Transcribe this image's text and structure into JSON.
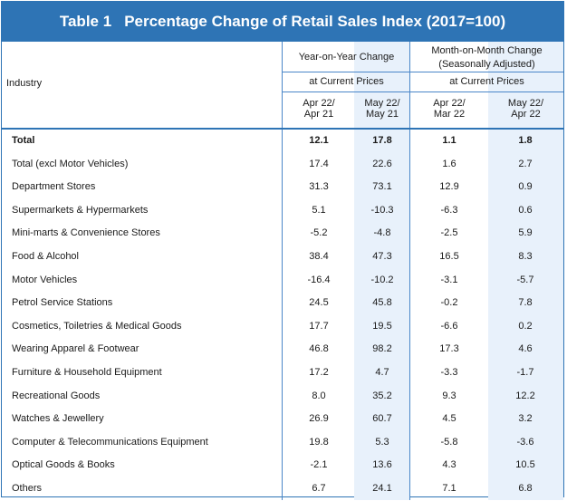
{
  "title": {
    "number": "Table 1",
    "text": "Percentage Change of Retail Sales Index (2017=100)"
  },
  "header": {
    "industry": "Industry",
    "yoy_group": "Year-on-Year Change",
    "mom_group_line1": "Month-on-Month Change",
    "mom_group_line2": "(Seasonally Adjusted)",
    "yoy_sub": "at Current Prices",
    "mom_sub": "at Current Prices",
    "cols": [
      {
        "line1": "Apr 22/",
        "line2": "Apr 21"
      },
      {
        "line1": "May 22/",
        "line2": "May 21"
      },
      {
        "line1": "Apr 22/",
        "line2": "Mar 22"
      },
      {
        "line1": "May 22/",
        "line2": "Apr 22"
      }
    ]
  },
  "rows": [
    {
      "industry": "Total",
      "values": [
        "12.1",
        "17.8",
        "1.1",
        "1.8"
      ]
    },
    {
      "industry": "Total (excl Motor Vehicles)",
      "values": [
        "17.4",
        "22.6",
        "1.6",
        "2.7"
      ]
    },
    {
      "industry": "Department Stores",
      "values": [
        "31.3",
        "73.1",
        "12.9",
        "0.9"
      ]
    },
    {
      "industry": "Supermarkets & Hypermarkets",
      "values": [
        "5.1",
        "-10.3",
        "-6.3",
        "0.6"
      ]
    },
    {
      "industry": "Mini-marts & Convenience Stores",
      "values": [
        "-5.2",
        "-4.8",
        "-2.5",
        "5.9"
      ]
    },
    {
      "industry": "Food & Alcohol",
      "values": [
        "38.4",
        "47.3",
        "16.5",
        "8.3"
      ]
    },
    {
      "industry": "Motor Vehicles",
      "values": [
        "-16.4",
        "-10.2",
        "-3.1",
        "-5.7"
      ]
    },
    {
      "industry": "Petrol Service Stations",
      "values": [
        "24.5",
        "45.8",
        "-0.2",
        "7.8"
      ]
    },
    {
      "industry": "Cosmetics, Toiletries & Medical Goods",
      "values": [
        "17.7",
        "19.5",
        "-6.6",
        "0.2"
      ]
    },
    {
      "industry": "Wearing Apparel & Footwear",
      "values": [
        "46.8",
        "98.2",
        "17.3",
        "4.6"
      ]
    },
    {
      "industry": "Furniture & Household Equipment",
      "values": [
        "17.2",
        "4.7",
        "-3.3",
        "-1.7"
      ]
    },
    {
      "industry": "Recreational Goods",
      "values": [
        "8.0",
        "35.2",
        "9.3",
        "12.2"
      ]
    },
    {
      "industry": "Watches & Jewellery",
      "values": [
        "26.9",
        "60.7",
        "4.5",
        "3.2"
      ]
    },
    {
      "industry": "Computer & Telecommunications Equipment",
      "values": [
        "19.8",
        "5.3",
        "-5.8",
        "-3.6"
      ]
    },
    {
      "industry": "Optical Goods & Books",
      "values": [
        "-2.1",
        "13.6",
        "4.3",
        "10.5"
      ]
    },
    {
      "industry": "Others",
      "values": [
        "6.7",
        "24.1",
        "7.1",
        "6.8"
      ]
    }
  ],
  "colors": {
    "title_background": "#2e74b5",
    "rule": "#4a86c8",
    "shade": "#e8f1fb"
  }
}
